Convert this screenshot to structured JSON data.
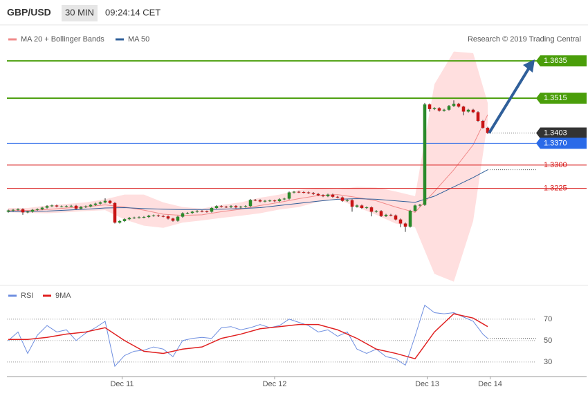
{
  "chart_data": [
    {
      "type": "candlestick",
      "title": "GBP/USD",
      "timeframe": "30 MIN",
      "time": "09:24:14 CET",
      "source": "Research © 2019 Trading Central",
      "up_color": "#2a8a2a",
      "down_color": "#c81414",
      "xlim": [
        0,
        119
      ],
      "ylim": [
        1.2902,
        1.3742
      ],
      "open": [
        1.315,
        1.3154,
        1.3156,
        1.3158,
        1.3148,
        1.315,
        1.3156,
        1.3158,
        1.3163,
        1.3168,
        1.317,
        1.3167,
        1.3167,
        1.3168,
        1.3169,
        1.316,
        1.3165,
        1.3167,
        1.3172,
        1.3176,
        1.318,
        1.3185,
        1.3178,
        1.3115,
        1.312,
        1.3126,
        1.313,
        1.3131,
        1.3132,
        1.3133,
        1.3137,
        1.3138,
        1.3136,
        1.3135,
        1.3128,
        1.3121,
        1.3134,
        1.3145,
        1.3146,
        1.315,
        1.3152,
        1.3151,
        1.315,
        1.3162,
        1.3168,
        1.3166,
        1.3165,
        1.3168,
        1.3164,
        1.3166,
        1.3168,
        1.3188,
        1.3187,
        1.3183,
        1.3185,
        1.3186,
        1.3184,
        1.319,
        1.3192,
        1.3212,
        1.3214,
        1.3213,
        1.3212,
        1.321,
        1.3207,
        1.3203,
        1.32,
        1.3205,
        1.3198,
        1.3196,
        1.3185,
        1.3187,
        1.3166,
        1.317,
        1.3162,
        1.3164,
        1.315,
        1.3152,
        1.3136,
        1.314,
        1.3138,
        1.3125,
        1.3112,
        1.3102,
        1.3153,
        1.317,
        1.3172,
        1.3495,
        1.348,
        1.3483,
        1.3475,
        1.3478,
        1.349,
        1.3497,
        1.3488,
        1.3472,
        1.3478,
        1.347,
        1.3442,
        1.342
      ],
      "high": [
        1.3157,
        1.3159,
        1.3161,
        1.3161,
        1.3153,
        1.3159,
        1.3161,
        1.3166,
        1.3171,
        1.3173,
        1.3173,
        1.317,
        1.3171,
        1.3172,
        1.3172,
        1.3168,
        1.317,
        1.3175,
        1.3179,
        1.3183,
        1.3193,
        1.3188,
        1.3181,
        1.3123,
        1.3129,
        1.3133,
        1.3134,
        1.3135,
        1.3136,
        1.314,
        1.3141,
        1.3141,
        1.3139,
        1.3138,
        1.3131,
        1.3137,
        1.3148,
        1.3149,
        1.3153,
        1.3155,
        1.3155,
        1.3154,
        1.3165,
        1.3171,
        1.3171,
        1.3169,
        1.3171,
        1.3171,
        1.3169,
        1.3171,
        1.3191,
        1.3191,
        1.319,
        1.3188,
        1.3189,
        1.3189,
        1.3193,
        1.3195,
        1.3215,
        1.3217,
        1.3217,
        1.3216,
        1.3215,
        1.3213,
        1.321,
        1.3206,
        1.3208,
        1.3208,
        1.3201,
        1.3199,
        1.319,
        1.319,
        1.3173,
        1.3173,
        1.3167,
        1.3167,
        1.3155,
        1.3155,
        1.3143,
        1.3143,
        1.3141,
        1.3128,
        1.3115,
        1.3156,
        1.3173,
        1.3175,
        1.35,
        1.3498,
        1.3486,
        1.3486,
        1.3481,
        1.3493,
        1.3508,
        1.35,
        1.3491,
        1.3481,
        1.3481,
        1.3473,
        1.3445,
        1.3423
      ],
      "low": [
        1.3147,
        1.3151,
        1.3153,
        1.314,
        1.3145,
        1.3147,
        1.3153,
        1.3155,
        1.316,
        1.3165,
        1.3164,
        1.3164,
        1.3164,
        1.3165,
        1.3157,
        1.3157,
        1.3162,
        1.3164,
        1.3169,
        1.3173,
        1.3177,
        1.3175,
        1.3112,
        1.3112,
        1.3117,
        1.3123,
        1.3127,
        1.3128,
        1.3129,
        1.313,
        1.3134,
        1.3133,
        1.3132,
        1.3125,
        1.3118,
        1.3118,
        1.3131,
        1.3142,
        1.3143,
        1.3147,
        1.3148,
        1.3147,
        1.3147,
        1.3159,
        1.3163,
        1.3162,
        1.3162,
        1.3161,
        1.3161,
        1.3163,
        1.3165,
        1.3184,
        1.318,
        1.318,
        1.3182,
        1.3181,
        1.3181,
        1.3187,
        1.3189,
        1.3209,
        1.321,
        1.3209,
        1.3207,
        1.3204,
        1.32,
        1.3197,
        1.3197,
        1.3195,
        1.3193,
        1.3182,
        1.3182,
        1.315,
        1.3163,
        1.3159,
        1.3159,
        1.3135,
        1.3147,
        1.3133,
        1.3133,
        1.3135,
        1.3122,
        1.31,
        1.3085,
        1.3099,
        1.315,
        1.3167,
        1.3169,
        1.3472,
        1.3477,
        1.3472,
        1.3472,
        1.3475,
        1.3487,
        1.3485,
        1.346,
        1.3469,
        1.3467,
        1.3439,
        1.3417,
        1.34
      ],
      "close": [
        1.3154,
        1.3156,
        1.3158,
        1.3148,
        1.315,
        1.3156,
        1.3158,
        1.3163,
        1.3168,
        1.317,
        1.3167,
        1.3167,
        1.3168,
        1.3169,
        1.316,
        1.3165,
        1.3167,
        1.3172,
        1.3176,
        1.318,
        1.3185,
        1.3178,
        1.3115,
        1.312,
        1.3126,
        1.313,
        1.3131,
        1.3132,
        1.3133,
        1.3137,
        1.3138,
        1.3136,
        1.3135,
        1.3128,
        1.3121,
        1.3134,
        1.3145,
        1.3146,
        1.315,
        1.3152,
        1.3151,
        1.315,
        1.3162,
        1.3168,
        1.3166,
        1.3165,
        1.3168,
        1.3164,
        1.3166,
        1.3168,
        1.3188,
        1.3187,
        1.3183,
        1.3185,
        1.3186,
        1.3184,
        1.319,
        1.3192,
        1.3212,
        1.3214,
        1.3213,
        1.3212,
        1.321,
        1.3207,
        1.3203,
        1.32,
        1.3205,
        1.3198,
        1.3196,
        1.3185,
        1.3187,
        1.3166,
        1.317,
        1.3162,
        1.3164,
        1.315,
        1.3152,
        1.3136,
        1.314,
        1.3138,
        1.3125,
        1.3112,
        1.3102,
        1.3153,
        1.317,
        1.3172,
        1.3495,
        1.348,
        1.3483,
        1.3475,
        1.3478,
        1.349,
        1.3497,
        1.3488,
        1.3472,
        1.3478,
        1.347,
        1.3442,
        1.342,
        1.3403
      ],
      "series": [
        {
          "name": "MA 20 + Bollinger Bands",
          "color": "#f08a8a",
          "band_color": "#ffd4d4",
          "x": [
            0,
            4,
            8,
            12,
            16,
            20,
            24,
            28,
            32,
            36,
            40,
            44,
            48,
            52,
            56,
            60,
            64,
            68,
            72,
            76,
            80,
            84,
            88,
            92,
            96,
            99
          ],
          "values": [
            1.3155,
            1.3154,
            1.3157,
            1.3162,
            1.3166,
            1.3172,
            1.3165,
            1.3155,
            1.3142,
            1.3138,
            1.314,
            1.315,
            1.3158,
            1.317,
            1.318,
            1.3192,
            1.3202,
            1.3205,
            1.3196,
            1.3185,
            1.3165,
            1.3148,
            1.3215,
            1.3285,
            1.3365,
            1.3462
          ],
          "upper": [
            1.3162,
            1.3162,
            1.317,
            1.3175,
            1.318,
            1.319,
            1.3205,
            1.3205,
            1.318,
            1.3165,
            1.316,
            1.3172,
            1.318,
            1.3195,
            1.3205,
            1.322,
            1.3225,
            1.3222,
            1.323,
            1.3228,
            1.3215,
            1.32,
            1.356,
            1.3665,
            1.366,
            1.35
          ],
          "lower": [
            1.3148,
            1.3146,
            1.3145,
            1.3148,
            1.3152,
            1.3155,
            1.3125,
            1.3105,
            1.3098,
            1.3115,
            1.3122,
            1.313,
            1.3137,
            1.3145,
            1.3157,
            1.3165,
            1.3182,
            1.319,
            1.3165,
            1.314,
            1.3112,
            1.31,
            1.295,
            1.2925,
            1.312,
            1.344
          ]
        },
        {
          "name": "MA 50",
          "color": "#2f5f9a",
          "x": [
            0,
            4,
            8,
            12,
            16,
            20,
            24,
            28,
            32,
            36,
            40,
            44,
            48,
            52,
            56,
            60,
            64,
            68,
            72,
            76,
            80,
            84,
            88,
            92,
            96,
            99
          ],
          "values": [
            1.315,
            1.3151,
            1.3152,
            1.3155,
            1.3158,
            1.3162,
            1.3163,
            1.316,
            1.3158,
            1.3157,
            1.3157,
            1.3158,
            1.316,
            1.3163,
            1.317,
            1.3177,
            1.3184,
            1.319,
            1.3192,
            1.319,
            1.3185,
            1.318,
            1.32,
            1.323,
            1.326,
            1.3285
          ]
        }
      ],
      "levels": [
        {
          "value": 1.3635,
          "color": "#4a9e0a",
          "box": true,
          "full_line": true
        },
        {
          "value": 1.3515,
          "color": "#4a9e0a",
          "box": true,
          "full_line": true
        },
        {
          "value": 1.3403,
          "color": "#333333",
          "box": true,
          "full_line": false
        },
        {
          "value": 1.337,
          "label": "1.3370",
          "color": "#2a6ae8",
          "box": true,
          "full_line": true
        },
        {
          "value": 1.33,
          "label": "1.3300",
          "color": "#d81818",
          "box": false,
          "full_line": true
        },
        {
          "value": 1.3225,
          "color": "#d81818",
          "box": false,
          "full_line": true
        }
      ]
    },
    {
      "type": "line",
      "xlim": [
        0,
        119
      ],
      "ylim": [
        17,
        97
      ],
      "yticks": [
        30,
        50,
        70
      ],
      "grid": true,
      "xticks": [
        {
          "value": 23.5,
          "label": "Dec 11"
        },
        {
          "value": 55,
          "label": "Dec 12"
        },
        {
          "value": 86.5,
          "label": "Dec 13"
        },
        {
          "value": 99.5,
          "label": "Dec 14"
        }
      ],
      "series": [
        {
          "name": "RSI",
          "color": "#6f8fe0",
          "x": [
            0,
            2,
            4,
            6,
            8,
            10,
            12,
            14,
            16,
            18,
            20,
            22,
            24,
            26,
            28,
            30,
            32,
            34,
            36,
            38,
            40,
            42,
            44,
            46,
            48,
            50,
            52,
            54,
            56,
            58,
            60,
            62,
            64,
            66,
            68,
            70,
            72,
            74,
            76,
            78,
            80,
            82,
            84,
            86,
            88,
            90,
            92,
            94,
            96,
            98,
            99
          ],
          "values": [
            50,
            58,
            38,
            55,
            64,
            58,
            60,
            50,
            57,
            62,
            68,
            26,
            36,
            40,
            41,
            44,
            42,
            35,
            50,
            52,
            53,
            52,
            62,
            63,
            60,
            62,
            65,
            62,
            64,
            70,
            67,
            64,
            58,
            60,
            54,
            58,
            42,
            38,
            42,
            35,
            33,
            27,
            54,
            83,
            76,
            75,
            76,
            72,
            68,
            56,
            52
          ]
        },
        {
          "name": "9MA",
          "color": "#e02020",
          "x": [
            0,
            4,
            8,
            12,
            16,
            20,
            24,
            28,
            32,
            36,
            40,
            44,
            48,
            52,
            56,
            60,
            64,
            68,
            72,
            76,
            80,
            84,
            88,
            92,
            96,
            99
          ],
          "values": [
            51,
            51,
            53,
            56,
            58,
            62,
            50,
            40,
            38,
            42,
            44,
            52,
            56,
            61,
            63,
            65,
            65,
            60,
            52,
            42,
            38,
            33,
            58,
            75,
            71,
            63
          ]
        }
      ]
    }
  ]
}
